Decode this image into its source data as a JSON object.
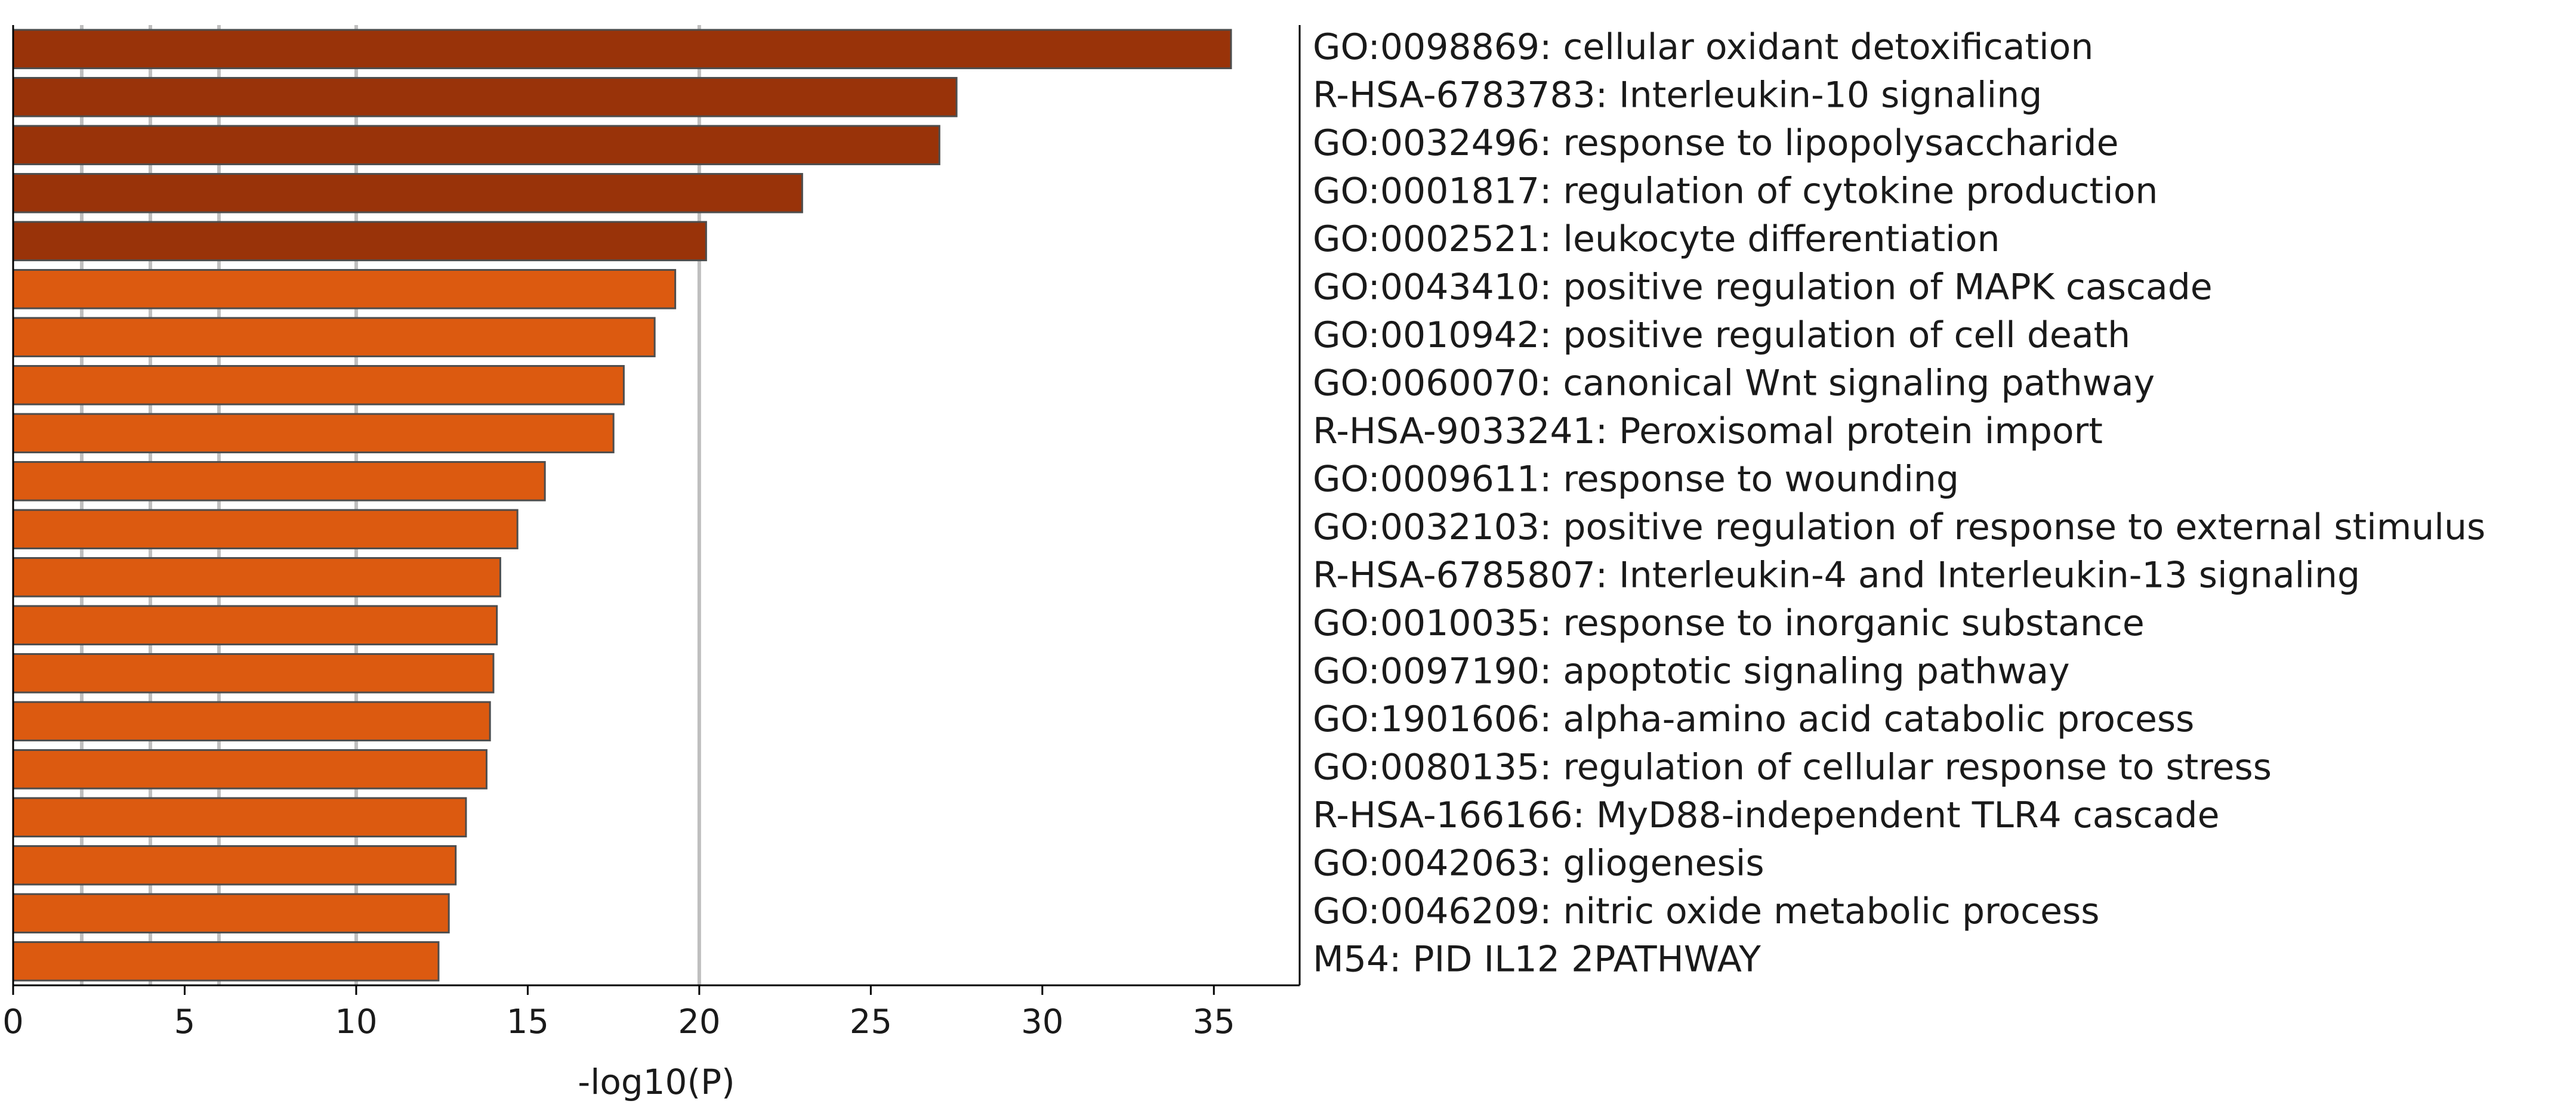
{
  "chart_data": {
    "type": "bar",
    "orientation": "horizontal",
    "xlabel": "-log10(P)",
    "xlim": [
      0,
      37.5
    ],
    "xticks": [
      0,
      5,
      10,
      15,
      20,
      25,
      30,
      35
    ],
    "reference_lines": [
      2,
      4,
      6,
      10,
      20
    ],
    "grid": false,
    "colors": {
      "dark": "#993309",
      "light": "#dc5a10",
      "edge": "#4d4d4d",
      "reference_line": "#bfbfbf"
    },
    "categories": [
      "GO:0098869: cellular oxidant detoxification",
      "R-HSA-6783783: Interleukin-10 signaling",
      "GO:0032496: response to lipopolysaccharide",
      "GO:0001817: regulation of cytokine production",
      "GO:0002521: leukocyte differentiation",
      "GO:0043410: positive regulation of MAPK cascade",
      "GO:0010942: positive regulation of cell death",
      "GO:0060070: canonical Wnt signaling pathway",
      "R-HSA-9033241: Peroxisomal protein import",
      "GO:0009611: response to wounding",
      "GO:0032103: positive regulation of response to external stimulus",
      "R-HSA-6785807: Interleukin-4 and Interleukin-13 signaling",
      "GO:0010035: response to inorganic substance",
      "GO:0097190: apoptotic signaling pathway",
      "GO:1901606: alpha-amino acid catabolic process",
      "GO:0080135: regulation of cellular response to stress",
      "R-HSA-166166: MyD88-independent TLR4 cascade",
      "GO:0042063: gliogenesis",
      "GO:0046209: nitric oxide metabolic process",
      "M54: PID IL12 2PATHWAY"
    ],
    "values": [
      35.5,
      27.5,
      27.0,
      23.0,
      20.2,
      19.3,
      18.7,
      17.8,
      17.5,
      15.5,
      14.7,
      14.2,
      14.1,
      14.0,
      13.9,
      13.8,
      13.2,
      12.9,
      12.7,
      12.4
    ],
    "color_groups": [
      "dark",
      "dark",
      "dark",
      "dark",
      "dark",
      "light",
      "light",
      "light",
      "light",
      "light",
      "light",
      "light",
      "light",
      "light",
      "light",
      "light",
      "light",
      "light",
      "light",
      "light"
    ]
  }
}
